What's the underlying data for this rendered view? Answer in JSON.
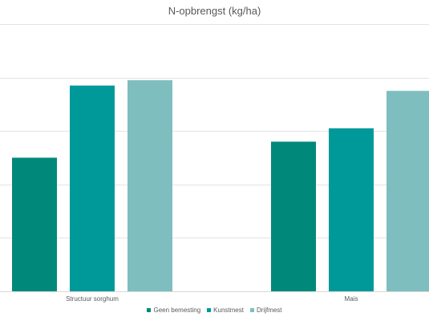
{
  "chart_data": {
    "type": "bar",
    "title": "N-opbrengst (kg/ha)",
    "xlabel": "",
    "ylabel": "",
    "categories": [
      "Structuur sorghum",
      "Mais"
    ],
    "series": [
      {
        "name": "Geen bemesting",
        "values": [
          50,
          56
        ],
        "color": "#00897B"
      },
      {
        "name": "Kunstmest",
        "values": [
          77,
          61
        ],
        "color": "#00999A"
      },
      {
        "name": "Drijfmest",
        "values": [
          79,
          75
        ],
        "color": "#7FBEBF"
      }
    ],
    "ylim": [
      0,
      100
    ],
    "yticks": [
      0,
      20,
      40,
      60,
      80,
      100
    ],
    "grid": true,
    "tick_labels_visible": false,
    "legend_position": "bottom"
  }
}
